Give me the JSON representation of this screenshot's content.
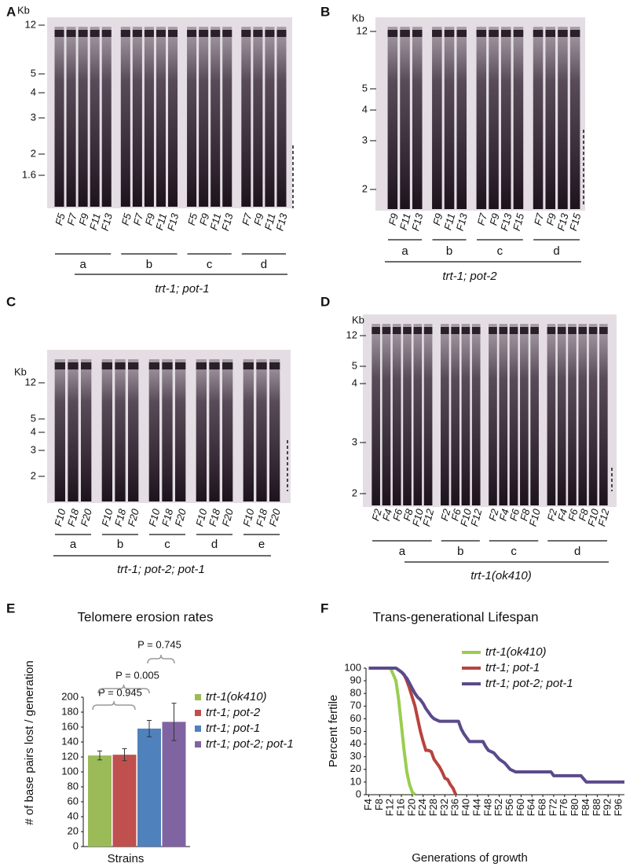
{
  "gels": [
    {
      "letter": "A",
      "unit": "Kb",
      "markers": [
        12,
        5,
        4,
        3,
        2,
        1.6
      ],
      "genotype": "trt-1; pot-1",
      "groups": [
        {
          "name": "a",
          "lanes": [
            "F5",
            "F7",
            "F9",
            "F11",
            "F13"
          ]
        },
        {
          "name": "b",
          "lanes": [
            "F5",
            "F7",
            "F9",
            "F11",
            "F13"
          ]
        },
        {
          "name": "c",
          "lanes": [
            "F5",
            "F9",
            "F11",
            "F13"
          ]
        },
        {
          "name": "d",
          "lanes": [
            "F7",
            "F9",
            "F11",
            "F13"
          ]
        }
      ]
    },
    {
      "letter": "B",
      "unit": "Kb",
      "markers": [
        12,
        5,
        4,
        3,
        2
      ],
      "genotype": "trt-1; pot-2",
      "groups": [
        {
          "name": "a",
          "lanes": [
            "F9",
            "F11",
            "F13"
          ]
        },
        {
          "name": "b",
          "lanes": [
            "F9",
            "F11",
            "F13"
          ]
        },
        {
          "name": "c",
          "lanes": [
            "F7",
            "F9",
            "F13",
            "F15"
          ]
        },
        {
          "name": "d",
          "lanes": [
            "F7",
            "F9",
            "F13",
            "F15"
          ]
        }
      ]
    },
    {
      "letter": "C",
      "unit": "Kb",
      "markers": [
        12,
        5,
        4,
        3,
        2
      ],
      "genotype": "trt-1; pot-2; pot-1",
      "groups": [
        {
          "name": "a",
          "lanes": [
            "F10",
            "F18",
            "F20"
          ]
        },
        {
          "name": "b",
          "lanes": [
            "F10",
            "F18",
            "F20"
          ]
        },
        {
          "name": "c",
          "lanes": [
            "F10",
            "F18",
            "F20"
          ]
        },
        {
          "name": "d",
          "lanes": [
            "F10",
            "F18",
            "F20"
          ]
        },
        {
          "name": "e",
          "lanes": [
            "F10",
            "F18",
            "F20"
          ]
        }
      ]
    },
    {
      "letter": "D",
      "unit": "Kb",
      "markers": [
        12,
        5,
        4,
        3,
        2
      ],
      "genotype": "trt-1(ok410)",
      "groups": [
        {
          "name": "a",
          "lanes": [
            "F2",
            "F4",
            "F6",
            "F8",
            "F10",
            "F12"
          ]
        },
        {
          "name": "b",
          "lanes": [
            "F2",
            "F6",
            "F10",
            "F12"
          ]
        },
        {
          "name": "c",
          "lanes": [
            "F2",
            "F4",
            "F6",
            "F8",
            "F10"
          ]
        },
        {
          "name": "d",
          "lanes": [
            "F2",
            "F4",
            "F6",
            "F8",
            "F10",
            "F12"
          ]
        }
      ]
    }
  ],
  "chart_data": [
    {
      "type": "bar",
      "panel": "E",
      "title": "Telomere erosion rates",
      "y_label": "# of base pairs lost / generation",
      "x_label": "Strains",
      "ylim": [
        0,
        200
      ],
      "yticks": [
        0,
        20,
        40,
        60,
        80,
        100,
        120,
        140,
        160,
        180,
        200
      ],
      "legend": "right",
      "annotations": [
        "P = 0.945",
        "P = 0.005",
        "P = 0.745"
      ],
      "series": [
        {
          "name": "trt-1(ok410)",
          "color": "#9bbb59",
          "values": [
            122
          ],
          "errors": [
            6
          ]
        },
        {
          "name": "trt-1; pot-2",
          "color": "#c0504d",
          "values": [
            123
          ],
          "errors": [
            8
          ]
        },
        {
          "name": "trt-1; pot-1",
          "color": "#4f81bd",
          "values": [
            158
          ],
          "errors": [
            11
          ]
        },
        {
          "name": "trt-1; pot-2; pot-1",
          "color": "#8064a2",
          "values": [
            167
          ],
          "errors": [
            25
          ]
        }
      ]
    },
    {
      "type": "line",
      "panel": "F",
      "title": "Trans-generational Lifespan",
      "y_label": "Percent fertile",
      "x_label": "Generations of growth",
      "xlim": [
        3,
        98
      ],
      "ylim": [
        0,
        100
      ],
      "yticks": [
        0,
        10,
        20,
        30,
        40,
        50,
        60,
        70,
        80,
        90,
        100
      ],
      "legend": "upper right",
      "xticks": [
        {
          "value": 4,
          "label": "F4"
        },
        {
          "value": 8,
          "label": "F8"
        },
        {
          "value": 12,
          "label": "F12"
        },
        {
          "value": 16,
          "label": "F16"
        },
        {
          "value": 20,
          "label": "F20"
        },
        {
          "value": 24,
          "label": "F24"
        },
        {
          "value": 28,
          "label": "F28"
        },
        {
          "value": 32,
          "label": "F32"
        },
        {
          "value": 36,
          "label": "F36"
        },
        {
          "value": 40,
          "label": "F40"
        },
        {
          "value": 44,
          "label": "F44"
        },
        {
          "value": 48,
          "label": "F48"
        },
        {
          "value": 52,
          "label": "F52"
        },
        {
          "value": 56,
          "label": "F56"
        },
        {
          "value": 60,
          "label": "F60"
        },
        {
          "value": 64,
          "label": "F64"
        },
        {
          "value": 68,
          "label": "F68"
        },
        {
          "value": 72,
          "label": "F72"
        },
        {
          "value": 76,
          "label": "F76"
        },
        {
          "value": 80,
          "label": "F80"
        },
        {
          "value": 84,
          "label": "F84"
        },
        {
          "value": 88,
          "label": "F88"
        },
        {
          "value": 92,
          "label": "F92"
        },
        {
          "value": 96,
          "label": "F96"
        }
      ],
      "series": [
        {
          "name": "trt-1(ok410)",
          "color": "#9acd50",
          "x": [
            4,
            12,
            14,
            15,
            16,
            17,
            18,
            19,
            20,
            21
          ],
          "values": [
            100,
            100,
            90,
            75,
            55,
            35,
            18,
            8,
            2,
            0
          ]
        },
        {
          "name": "trt-1; pot-1",
          "color": "#b8433f",
          "x": [
            4,
            14,
            16,
            17,
            18,
            19,
            20,
            21,
            22,
            23,
            24,
            25,
            26,
            27,
            28,
            29,
            30,
            31,
            32,
            33,
            34,
            35,
            36
          ],
          "values": [
            100,
            100,
            97,
            95,
            90,
            84,
            77,
            70,
            60,
            50,
            42,
            35,
            35,
            34,
            28,
            25,
            22,
            18,
            13,
            12,
            8,
            5,
            0
          ]
        },
        {
          "name": "trt-1; pot-2; pot-1",
          "color": "#5b4a8b",
          "x": [
            4,
            14,
            16,
            18,
            19,
            20,
            21,
            22,
            23,
            24,
            25,
            26,
            27,
            28,
            30,
            37,
            38,
            39,
            41,
            46,
            47,
            48,
            50,
            52,
            54,
            56,
            58,
            71,
            72,
            82,
            84,
            98
          ],
          "values": [
            100,
            100,
            97,
            92,
            88,
            84,
            80,
            77,
            75,
            72,
            68,
            65,
            62,
            60,
            58,
            58,
            52,
            48,
            42,
            42,
            38,
            35,
            33,
            28,
            25,
            20,
            18,
            18,
            15,
            15,
            10,
            10
          ]
        }
      ]
    }
  ]
}
